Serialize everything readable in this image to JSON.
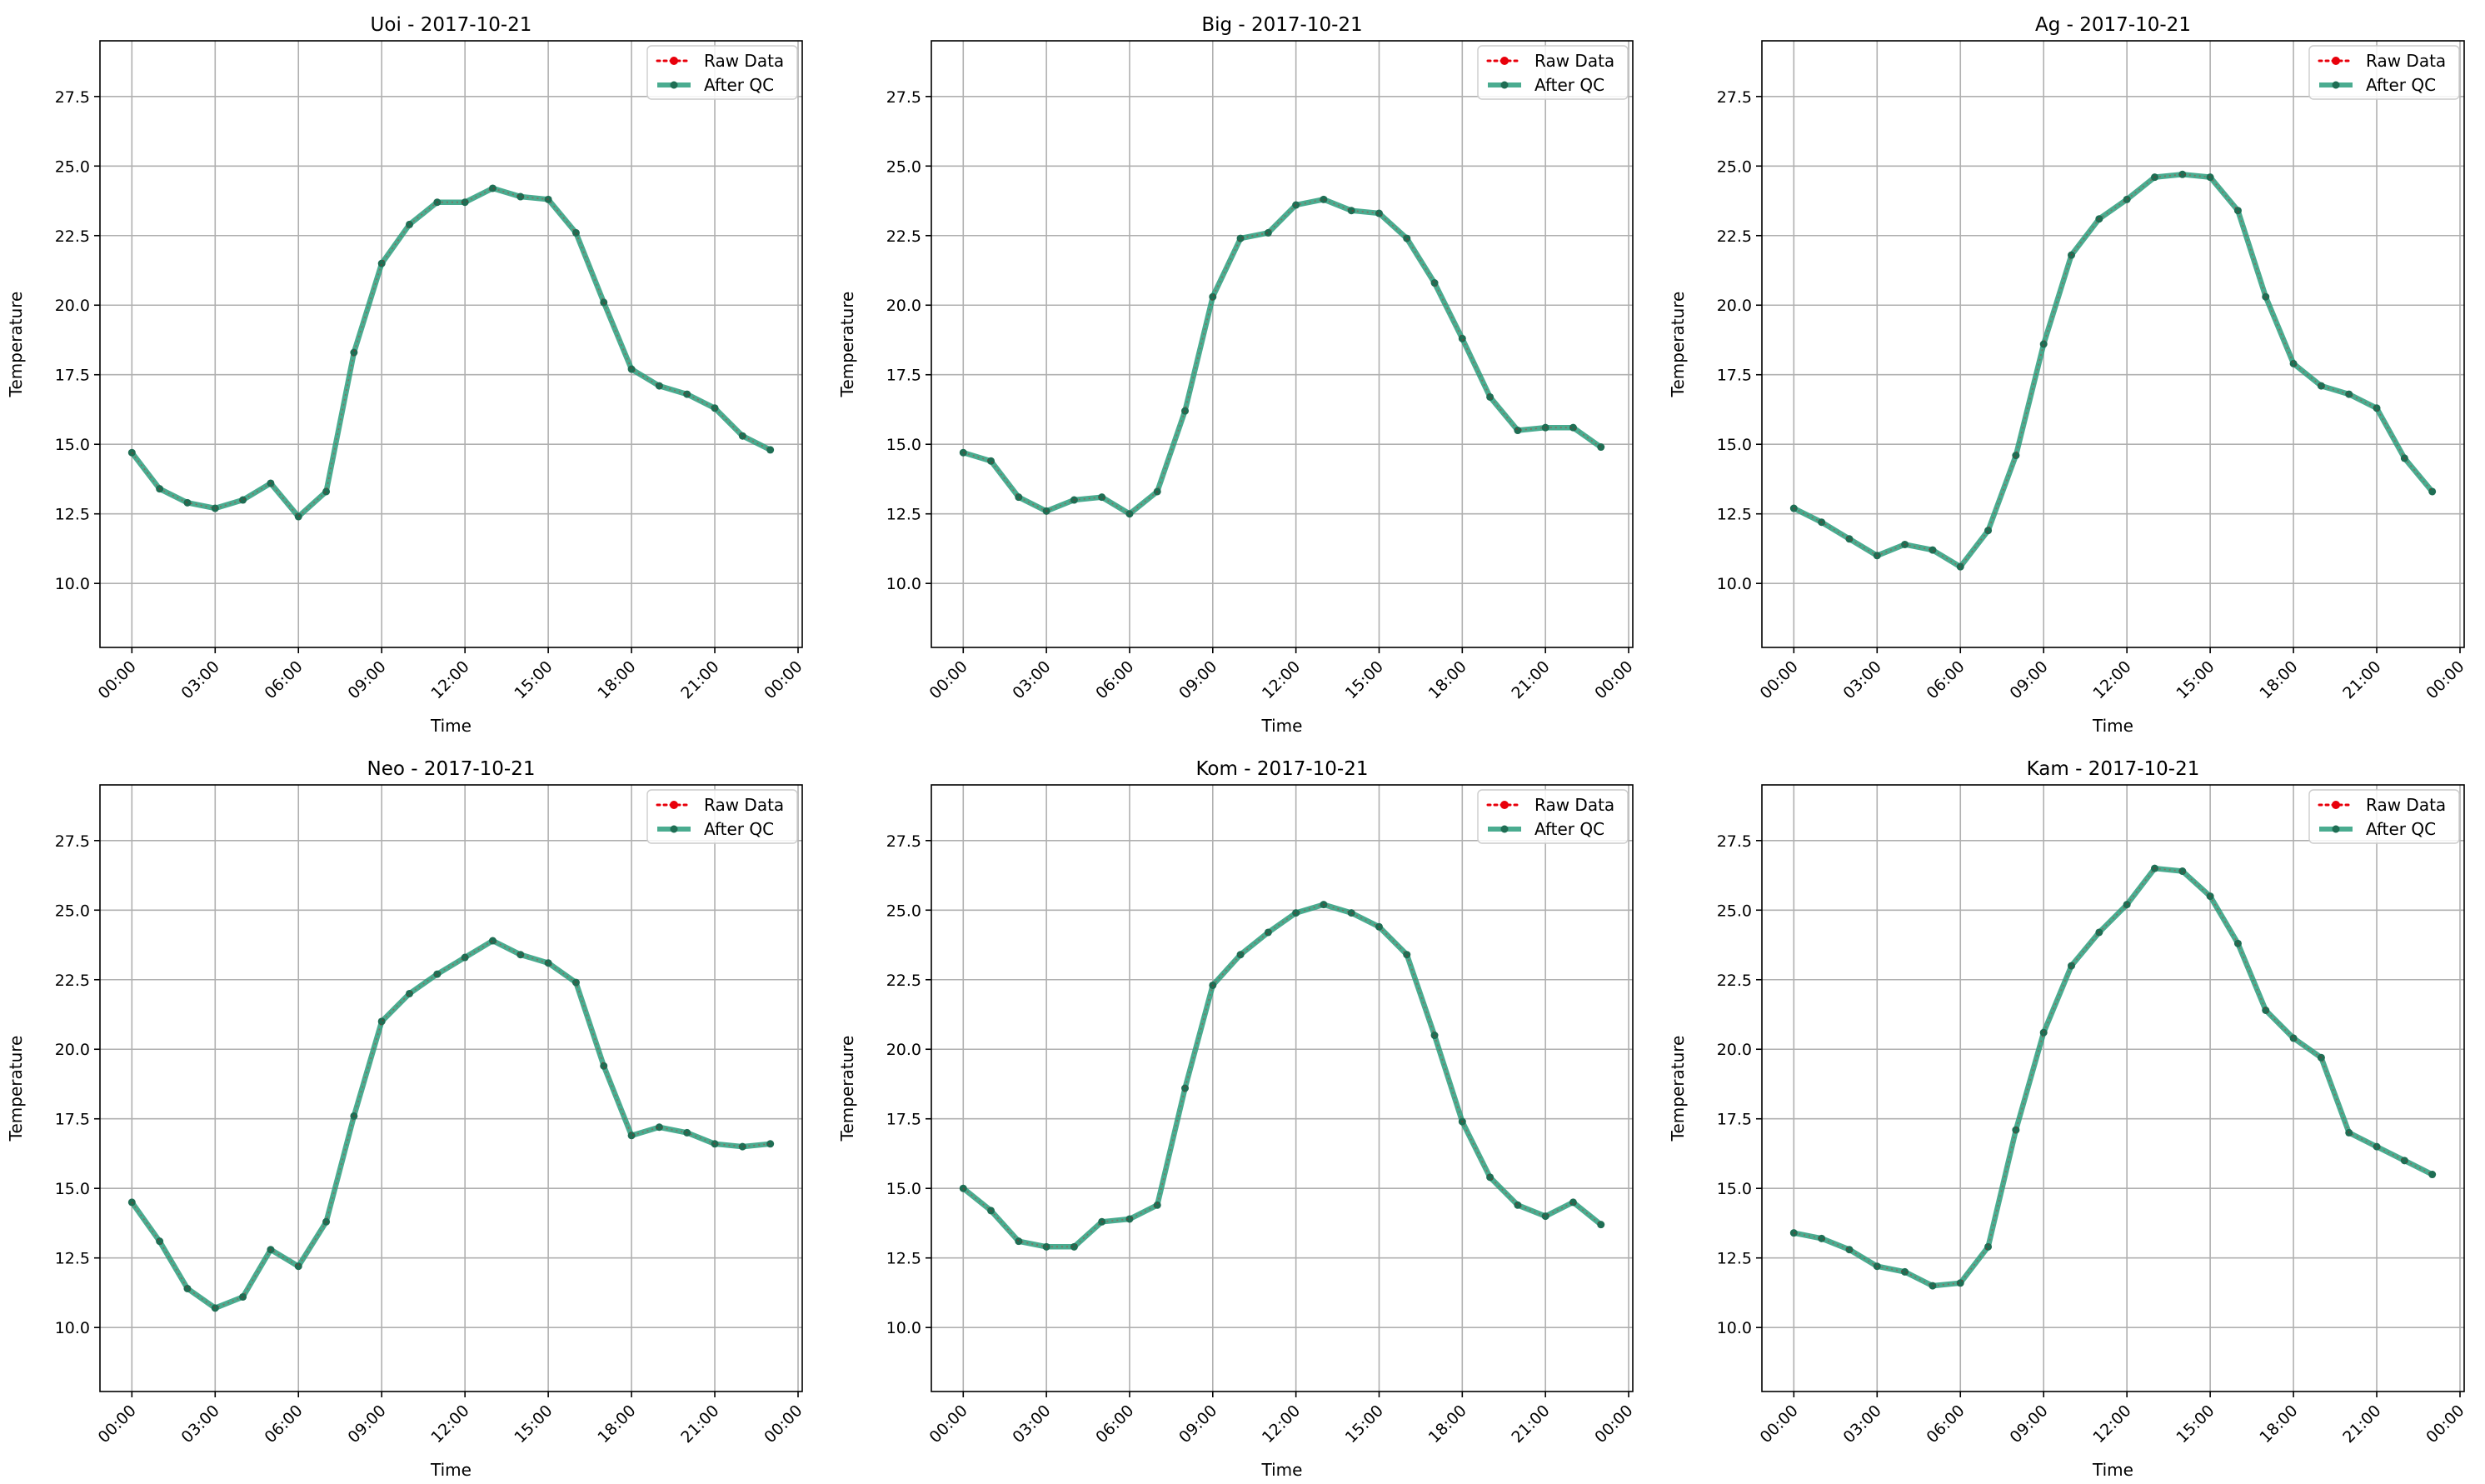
{
  "legend": {
    "raw_label": "Raw Data",
    "qc_label": "After QC"
  },
  "colors": {
    "raw": "#e8000b",
    "qc": "#2a9d7c",
    "qc_marker": "#1f6e54",
    "grid": "#b0b0b0"
  },
  "chart_data": [
    {
      "type": "line",
      "title": "Uoi - 2017-10-21",
      "xlabel": "Time",
      "ylabel": "Temperature",
      "x_ticks": [
        "00:00",
        "03:00",
        "06:00",
        "09:00",
        "12:00",
        "15:00",
        "18:00",
        "21:00",
        "00:00"
      ],
      "y_ticks": [
        "10.0",
        "12.5",
        "15.0",
        "17.5",
        "20.0",
        "22.5",
        "25.0",
        "27.5"
      ],
      "xlim_hours": [
        -1.15,
        24.15
      ],
      "ylim": [
        7.7,
        29.5
      ],
      "grid": true,
      "legend_position": "top-right",
      "x_hours": [
        0,
        1,
        2,
        3,
        4,
        5,
        6,
        7,
        8,
        9,
        10,
        11,
        12,
        13,
        14,
        15,
        16,
        17,
        18,
        19,
        20,
        21,
        22,
        23
      ],
      "series": [
        {
          "name": "Raw Data",
          "values": [
            14.7,
            13.4,
            12.9,
            12.7,
            13.0,
            13.6,
            12.4,
            13.3,
            18.3,
            21.5,
            22.9,
            23.7,
            23.7,
            24.2,
            23.9,
            23.8,
            22.6,
            20.1,
            17.7,
            17.1,
            16.8,
            16.3,
            15.3,
            14.8
          ]
        },
        {
          "name": "After QC",
          "values": [
            14.7,
            13.4,
            12.9,
            12.7,
            13.0,
            13.6,
            12.4,
            13.3,
            18.3,
            21.5,
            22.9,
            23.7,
            23.7,
            24.2,
            23.9,
            23.8,
            22.6,
            20.1,
            17.7,
            17.1,
            16.8,
            16.3,
            15.3,
            14.8
          ]
        }
      ]
    },
    {
      "type": "line",
      "title": "Big - 2017-10-21",
      "xlabel": "Time",
      "ylabel": "Temperature",
      "x_ticks": [
        "00:00",
        "03:00",
        "06:00",
        "09:00",
        "12:00",
        "15:00",
        "18:00",
        "21:00",
        "00:00"
      ],
      "y_ticks": [
        "10.0",
        "12.5",
        "15.0",
        "17.5",
        "20.0",
        "22.5",
        "25.0",
        "27.5"
      ],
      "xlim_hours": [
        -1.15,
        24.15
      ],
      "ylim": [
        7.7,
        29.5
      ],
      "grid": true,
      "legend_position": "top-right",
      "x_hours": [
        0,
        1,
        2,
        3,
        4,
        5,
        6,
        7,
        8,
        9,
        10,
        11,
        12,
        13,
        14,
        15,
        16,
        17,
        18,
        19,
        20,
        21,
        22,
        23
      ],
      "series": [
        {
          "name": "Raw Data",
          "values": [
            14.7,
            14.4,
            13.1,
            12.6,
            13.0,
            13.1,
            12.5,
            13.3,
            16.2,
            20.3,
            22.4,
            22.6,
            23.6,
            23.8,
            23.4,
            23.3,
            22.4,
            20.8,
            18.8,
            16.7,
            15.5,
            15.6,
            15.6,
            14.9
          ]
        },
        {
          "name": "After QC",
          "values": [
            14.7,
            14.4,
            13.1,
            12.6,
            13.0,
            13.1,
            12.5,
            13.3,
            16.2,
            20.3,
            22.4,
            22.6,
            23.6,
            23.8,
            23.4,
            23.3,
            22.4,
            20.8,
            18.8,
            16.7,
            15.5,
            15.6,
            15.6,
            14.9
          ]
        }
      ]
    },
    {
      "type": "line",
      "title": "Ag - 2017-10-21",
      "xlabel": "Time",
      "ylabel": "Temperature",
      "x_ticks": [
        "00:00",
        "03:00",
        "06:00",
        "09:00",
        "12:00",
        "15:00",
        "18:00",
        "21:00",
        "00:00"
      ],
      "y_ticks": [
        "10.0",
        "12.5",
        "15.0",
        "17.5",
        "20.0",
        "22.5",
        "25.0",
        "27.5"
      ],
      "xlim_hours": [
        -1.15,
        24.15
      ],
      "ylim": [
        7.7,
        29.5
      ],
      "grid": true,
      "legend_position": "top-right",
      "x_hours": [
        0,
        1,
        2,
        3,
        4,
        5,
        6,
        7,
        8,
        9,
        10,
        11,
        12,
        13,
        14,
        15,
        16,
        17,
        18,
        19,
        20,
        21,
        22,
        23
      ],
      "series": [
        {
          "name": "Raw Data",
          "values": [
            12.7,
            12.2,
            11.6,
            11.0,
            11.4,
            11.2,
            10.6,
            11.9,
            14.6,
            18.6,
            21.8,
            23.1,
            23.8,
            24.6,
            24.7,
            24.6,
            23.4,
            20.3,
            17.9,
            17.1,
            16.8,
            16.3,
            14.5,
            13.3
          ]
        },
        {
          "name": "After QC",
          "values": [
            12.7,
            12.2,
            11.6,
            11.0,
            11.4,
            11.2,
            10.6,
            11.9,
            14.6,
            18.6,
            21.8,
            23.1,
            23.8,
            24.6,
            24.7,
            24.6,
            23.4,
            20.3,
            17.9,
            17.1,
            16.8,
            16.3,
            14.5,
            13.3
          ]
        }
      ]
    },
    {
      "type": "line",
      "title": "Neo - 2017-10-21",
      "xlabel": "Time",
      "ylabel": "Temperature",
      "x_ticks": [
        "00:00",
        "03:00",
        "06:00",
        "09:00",
        "12:00",
        "15:00",
        "18:00",
        "21:00",
        "00:00"
      ],
      "y_ticks": [
        "10.0",
        "12.5",
        "15.0",
        "17.5",
        "20.0",
        "22.5",
        "25.0",
        "27.5"
      ],
      "xlim_hours": [
        -1.15,
        24.15
      ],
      "ylim": [
        7.7,
        29.5
      ],
      "grid": true,
      "legend_position": "top-right",
      "x_hours": [
        0,
        1,
        2,
        3,
        4,
        5,
        6,
        7,
        8,
        9,
        10,
        11,
        12,
        13,
        14,
        15,
        16,
        17,
        18,
        19,
        20,
        21,
        22,
        23
      ],
      "series": [
        {
          "name": "Raw Data",
          "values": [
            14.5,
            13.1,
            11.4,
            10.7,
            11.1,
            12.8,
            12.2,
            13.8,
            17.6,
            21.0,
            22.0,
            22.7,
            23.3,
            23.9,
            23.4,
            23.1,
            22.4,
            19.4,
            16.9,
            17.2,
            17.0,
            16.6,
            16.5,
            16.6
          ]
        },
        {
          "name": "After QC",
          "values": [
            14.5,
            13.1,
            11.4,
            10.7,
            11.1,
            12.8,
            12.2,
            13.8,
            17.6,
            21.0,
            22.0,
            22.7,
            23.3,
            23.9,
            23.4,
            23.1,
            22.4,
            19.4,
            16.9,
            17.2,
            17.0,
            16.6,
            16.5,
            16.6
          ]
        }
      ]
    },
    {
      "type": "line",
      "title": "Kom - 2017-10-21",
      "xlabel": "Time",
      "ylabel": "Temperature",
      "x_ticks": [
        "00:00",
        "03:00",
        "06:00",
        "09:00",
        "12:00",
        "15:00",
        "18:00",
        "21:00",
        "00:00"
      ],
      "y_ticks": [
        "10.0",
        "12.5",
        "15.0",
        "17.5",
        "20.0",
        "22.5",
        "25.0",
        "27.5"
      ],
      "xlim_hours": [
        -1.15,
        24.15
      ],
      "ylim": [
        7.7,
        29.5
      ],
      "grid": true,
      "legend_position": "top-right",
      "x_hours": [
        0,
        1,
        2,
        3,
        4,
        5,
        6,
        7,
        8,
        9,
        10,
        11,
        12,
        13,
        14,
        15,
        16,
        17,
        18,
        19,
        20,
        21,
        22,
        23
      ],
      "series": [
        {
          "name": "Raw Data",
          "values": [
            15.0,
            14.2,
            13.1,
            12.9,
            12.9,
            13.8,
            13.9,
            14.4,
            18.6,
            22.3,
            23.4,
            24.2,
            24.9,
            25.2,
            24.9,
            24.4,
            23.4,
            20.5,
            17.4,
            15.4,
            14.4,
            14.0,
            14.5,
            13.7
          ]
        },
        {
          "name": "After QC",
          "values": [
            15.0,
            14.2,
            13.1,
            12.9,
            12.9,
            13.8,
            13.9,
            14.4,
            18.6,
            22.3,
            23.4,
            24.2,
            24.9,
            25.2,
            24.9,
            24.4,
            23.4,
            20.5,
            17.4,
            15.4,
            14.4,
            14.0,
            14.5,
            13.7
          ]
        }
      ]
    },
    {
      "type": "line",
      "title": "Kam - 2017-10-21",
      "xlabel": "Time",
      "ylabel": "Temperature",
      "x_ticks": [
        "00:00",
        "03:00",
        "06:00",
        "09:00",
        "12:00",
        "15:00",
        "18:00",
        "21:00",
        "00:00"
      ],
      "y_ticks": [
        "10.0",
        "12.5",
        "15.0",
        "17.5",
        "20.0",
        "22.5",
        "25.0",
        "27.5"
      ],
      "xlim_hours": [
        -1.15,
        24.15
      ],
      "ylim": [
        7.7,
        29.5
      ],
      "grid": true,
      "legend_position": "top-right",
      "x_hours": [
        0,
        1,
        2,
        3,
        4,
        5,
        6,
        7,
        8,
        9,
        10,
        11,
        12,
        13,
        14,
        15,
        16,
        17,
        18,
        19,
        20,
        21,
        22,
        23
      ],
      "series": [
        {
          "name": "Raw Data",
          "values": [
            13.4,
            13.2,
            12.8,
            12.2,
            12.0,
            11.5,
            11.6,
            12.9,
            17.1,
            20.6,
            23.0,
            24.2,
            25.2,
            26.5,
            26.4,
            25.5,
            23.8,
            21.4,
            20.4,
            19.7,
            17.0,
            16.5,
            16.0,
            15.5
          ]
        },
        {
          "name": "After QC",
          "values": [
            13.4,
            13.2,
            12.8,
            12.2,
            12.0,
            11.5,
            11.6,
            12.9,
            17.1,
            20.6,
            23.0,
            24.2,
            25.2,
            26.5,
            26.4,
            25.5,
            23.8,
            21.4,
            20.4,
            19.7,
            17.0,
            16.5,
            16.0,
            15.5
          ]
        }
      ]
    }
  ]
}
